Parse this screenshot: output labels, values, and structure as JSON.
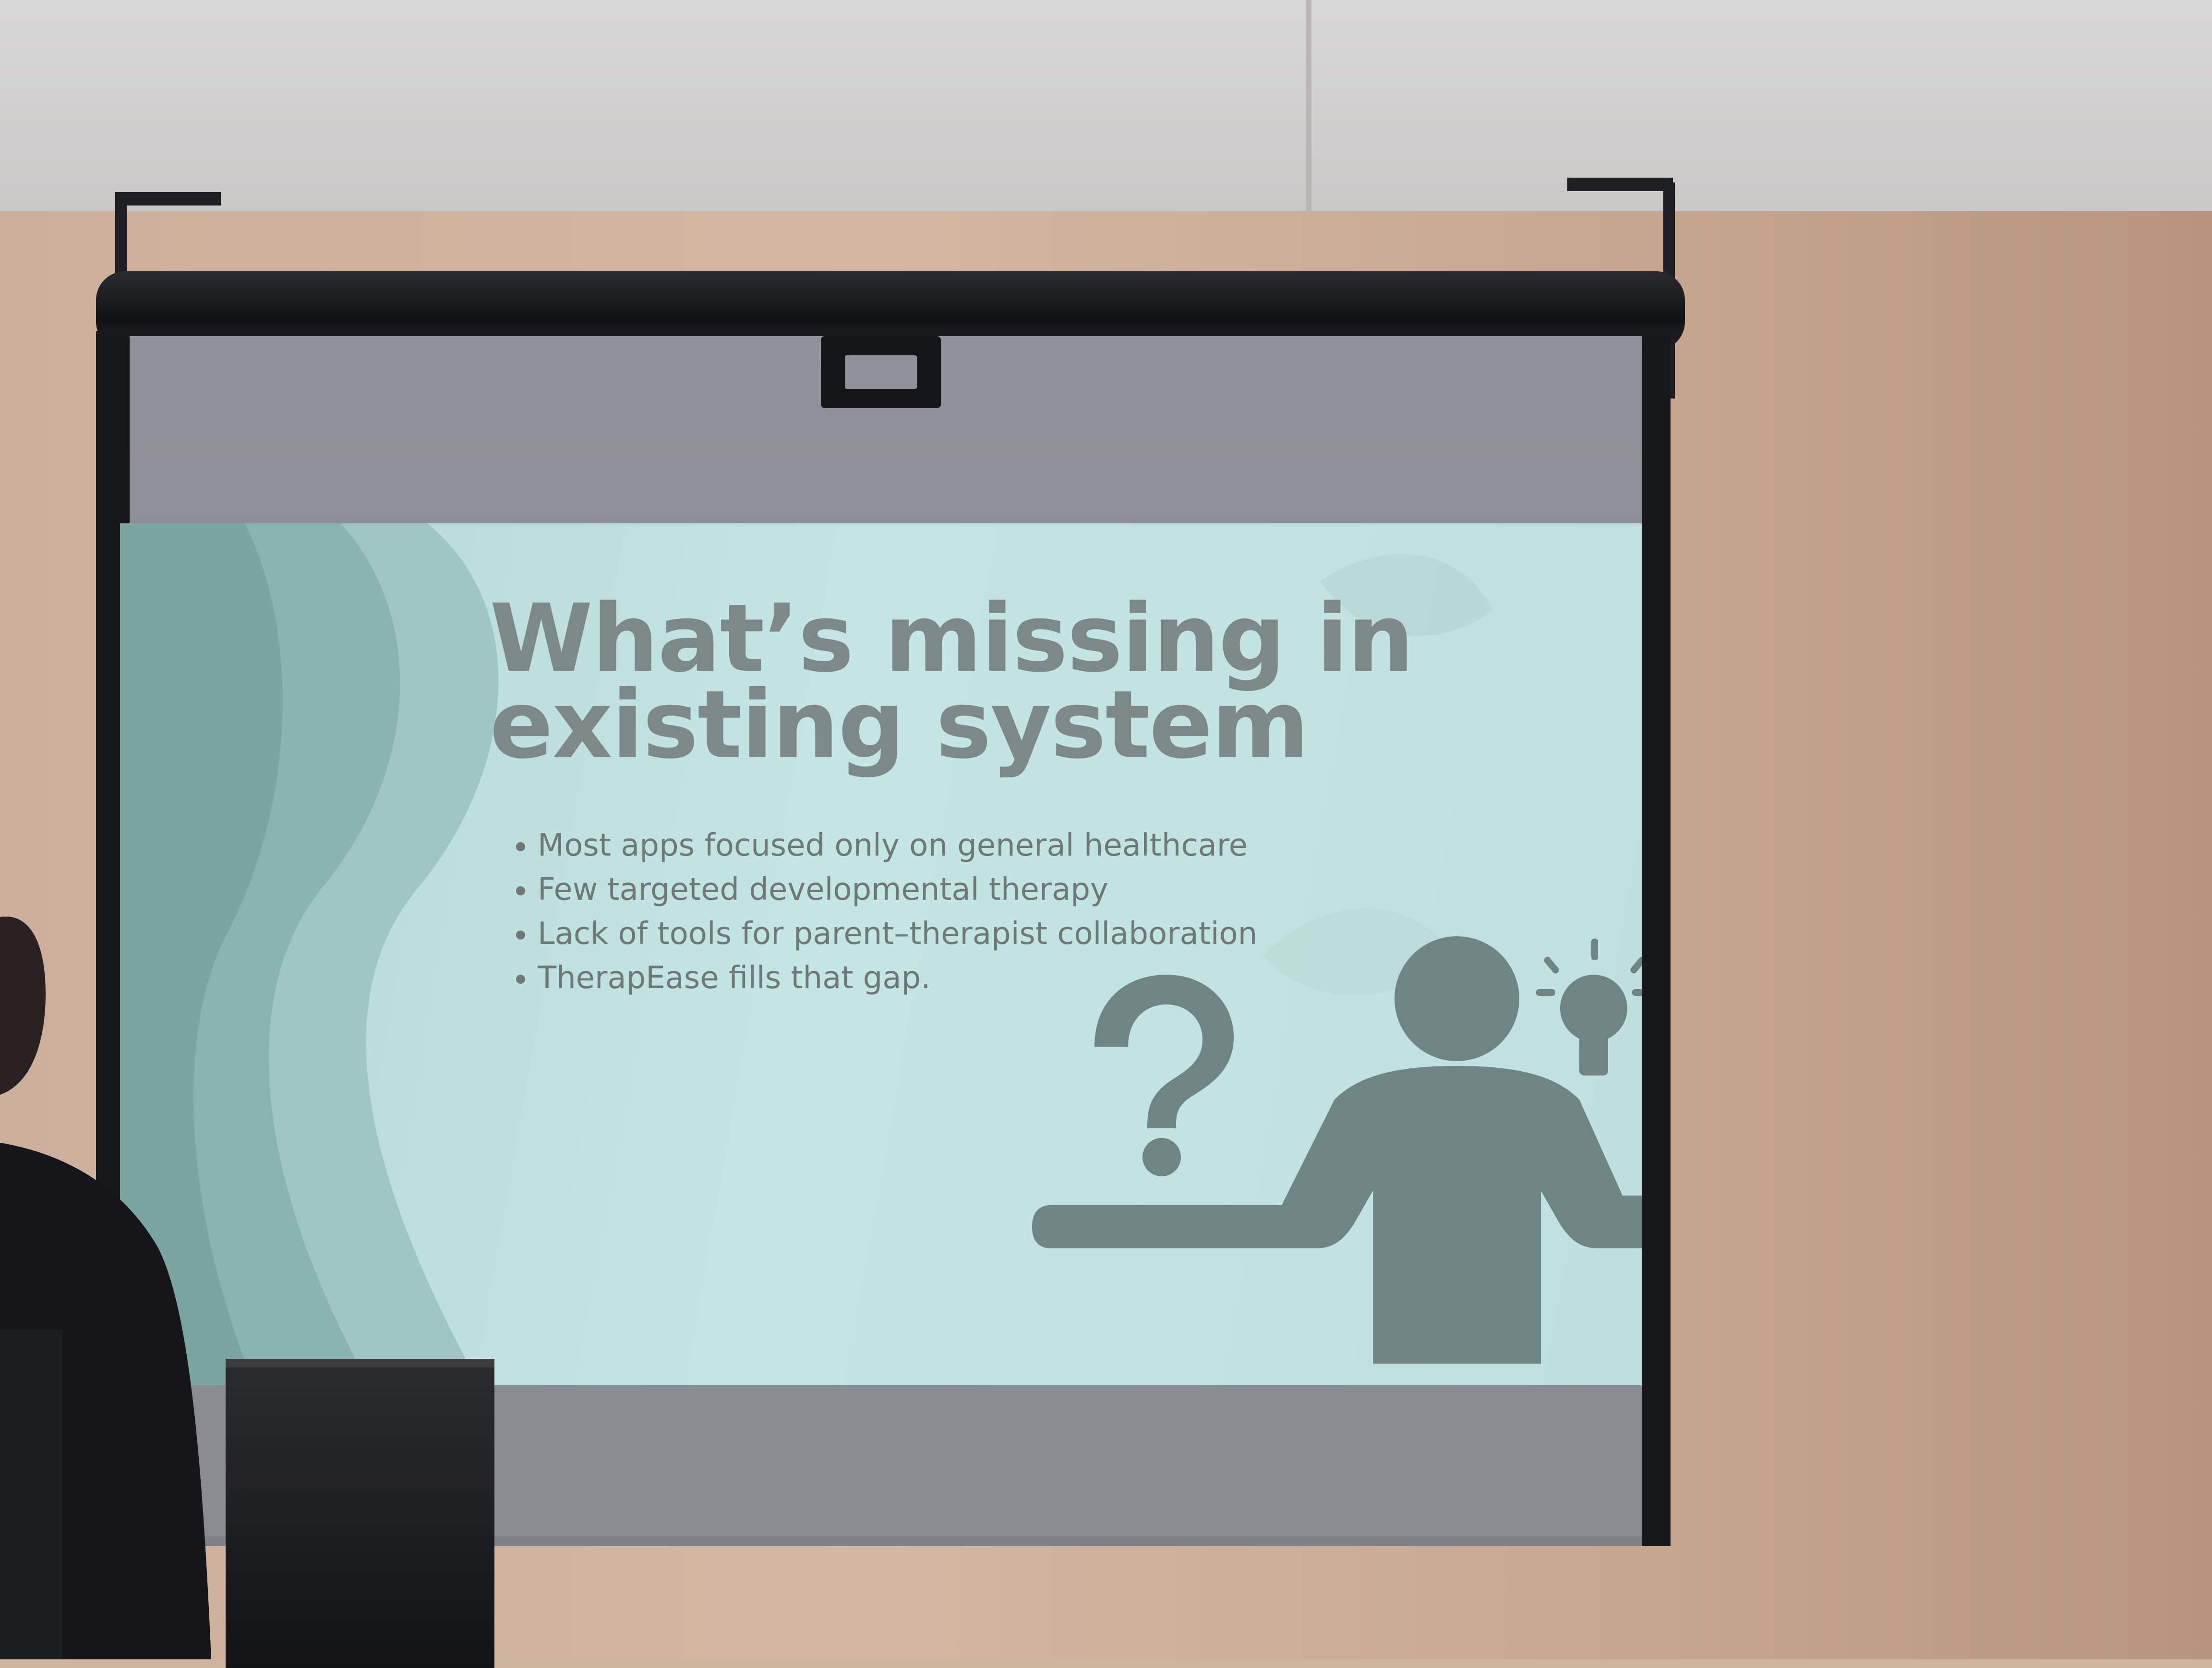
{
  "slide": {
    "title_line1": "What’s missing in",
    "title_line2": "existing system",
    "bullets": [
      "Most apps focused only on general healthcare",
      "Few targeted developmental therapy",
      "Lack of tools for parent–therapist collaboration",
      "TherapEase fills that gap."
    ],
    "illustration_icons": [
      "question-mark-icon",
      "person-shrug-icon",
      "lightbulb-icon"
    ]
  },
  "colors": {
    "slide_background": "#c4e6e3",
    "title_text": "#7c8988",
    "body_text": "#6e7877",
    "illustration": "#6f8583",
    "wall": "#cfb49e",
    "screen_frame": "#17181b"
  }
}
